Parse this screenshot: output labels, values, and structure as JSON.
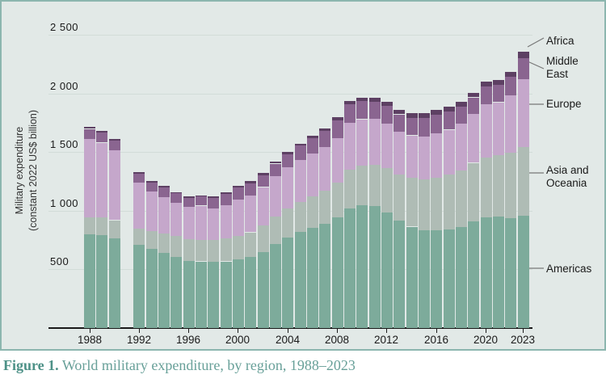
{
  "figure": {
    "background_color": "#e2e9e7",
    "border_color": "#8cb6af",
    "caption_prefix": "Figure 1.",
    "caption_text": " World military expenditure, by region, 1988–2023"
  },
  "chart_data": {
    "type": "bar",
    "stacked": true,
    "title": "",
    "ylabel": "Military expenditure\n(constant 2022 US$ billion)",
    "xlabel": "",
    "ylim": [
      0,
      2500
    ],
    "grid": true,
    "note": "No bar for 1991 (data gap)",
    "years": [
      1988,
      1989,
      1990,
      1991,
      1992,
      1993,
      1994,
      1995,
      1996,
      1997,
      1998,
      1999,
      2000,
      2001,
      2002,
      2003,
      2004,
      2005,
      2006,
      2007,
      2008,
      2009,
      2010,
      2011,
      2012,
      2013,
      2014,
      2015,
      2016,
      2017,
      2018,
      2019,
      2020,
      2021,
      2022,
      2023
    ],
    "x_ticks": [
      1988,
      1992,
      1996,
      2000,
      2004,
      2008,
      2012,
      2016,
      2020,
      2023
    ],
    "y_ticks": [
      {
        "value": 500,
        "label": "500"
      },
      {
        "value": 1000,
        "label": "1 000"
      },
      {
        "value": 1500,
        "label": "1 500"
      },
      {
        "value": 2000,
        "label": "2 000"
      },
      {
        "value": 2500,
        "label": "2 500"
      }
    ],
    "series": [
      {
        "id": "americas",
        "name": "Americas",
        "color": "#7dab9b",
        "values": [
          800,
          795,
          765,
          null,
          710,
          677,
          643,
          609,
          576,
          570,
          565,
          570,
          585,
          605,
          650,
          720,
          775,
          820,
          855,
          890,
          945,
          1025,
          1050,
          1042,
          990,
          916,
          867,
          838,
          833,
          845,
          867,
          912,
          945,
          950,
          940,
          960
        ]
      },
      {
        "id": "asia-oceania",
        "name": "Asia and Oceania",
        "color": "#afbcb5",
        "values": [
          145,
          150,
          157,
          null,
          140,
          152,
          165,
          178,
          185,
          186,
          190,
          197,
          205,
          213,
          225,
          235,
          245,
          258,
          270,
          285,
          300,
          330,
          340,
          355,
          375,
          395,
          415,
          430,
          450,
          465,
          480,
          500,
          515,
          530,
          560,
          590
        ]
      },
      {
        "id": "europe",
        "name": "Europe",
        "color": "#c5a7cb",
        "values": [
          672,
          640,
          595,
          null,
          391,
          336,
          314,
          285,
          275,
          290,
          270,
          280,
          310,
          315,
          330,
          345,
          355,
          360,
          365,
          370,
          380,
          400,
          395,
          390,
          385,
          370,
          365,
          370,
          380,
          385,
          400,
          420,
          455,
          450,
          490,
          575
        ]
      },
      {
        "id": "middle-east",
        "name": "Middle East",
        "color": "#8a6590",
        "values": [
          85,
          84,
          86,
          null,
          77,
          78,
          82,
          79,
          79,
          78,
          90,
          98,
          100,
          105,
          102,
          105,
          112,
          120,
          130,
          140,
          150,
          160,
          155,
          150,
          150,
          146,
          146,
          157,
          160,
          155,
          145,
          140,
          150,
          148,
          155,
          185
        ]
      },
      {
        "id": "africa",
        "name": "Africa",
        "color": "#5d4063",
        "values": [
          16,
          16,
          14,
          null,
          13,
          12,
          12,
          11,
          11,
          12,
          14,
          14,
          15,
          16,
          17,
          18,
          19,
          20,
          21,
          23,
          26,
          29,
          32,
          35,
          37,
          40,
          43,
          42,
          40,
          41,
          40,
          41,
          43,
          45,
          46,
          52
        ]
      }
    ],
    "legend": {
      "position": "right",
      "africa_label": "Africa",
      "middle_east_label": "Middle\nEast",
      "europe_label": "Europe",
      "asia_label": "Asia and\nOceania",
      "americas_label": "Americas"
    }
  }
}
